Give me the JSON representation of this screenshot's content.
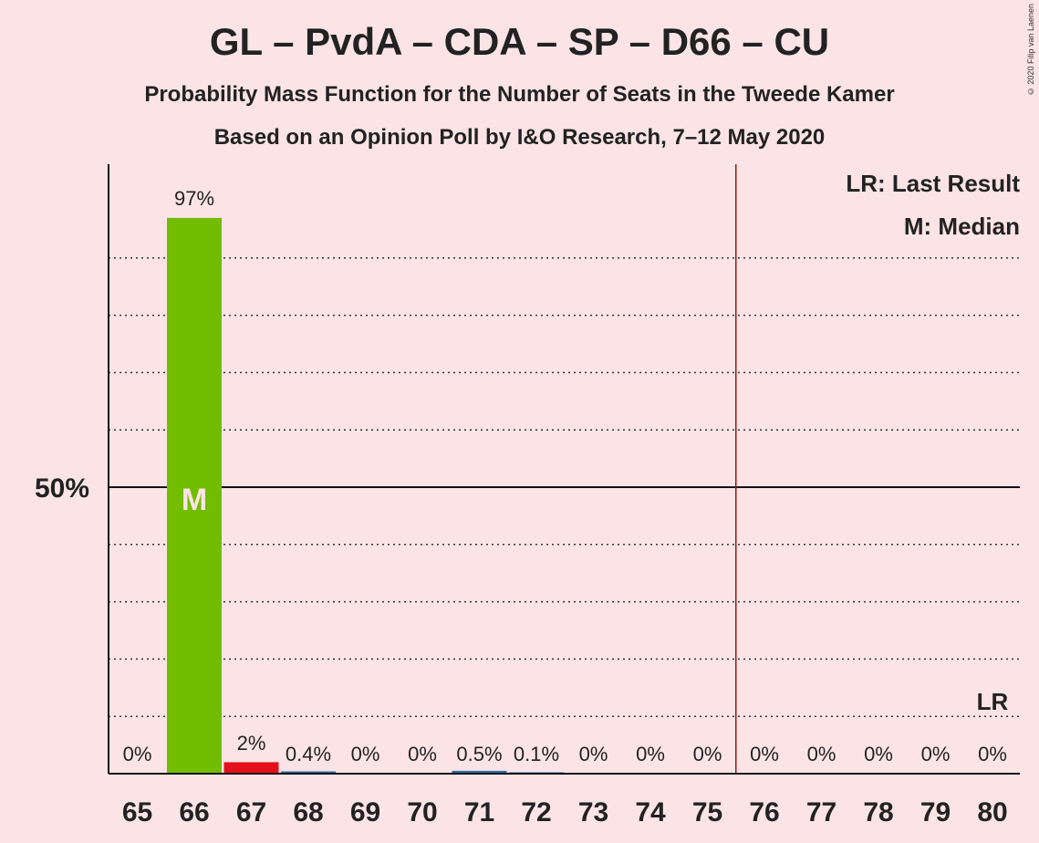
{
  "title": "GL – PvdA – CDA – SP – D66 – CU",
  "subtitle": "Probability Mass Function for the Number of Seats in the Tweede Kamer",
  "subtitle2": "Based on an Opinion Poll by I&O Research, 7–12 May 2020",
  "copyright": "© 2020 Filip van Laenen",
  "legend": {
    "lr": "LR: Last Result",
    "m": "M: Median"
  },
  "markers": {
    "median_label": "M",
    "last_result_label": "LR"
  },
  "colors": {
    "background": "#fce4e6",
    "median_bar": "#73bd00",
    "bar_67": "#e3101c",
    "bar_default": "#2e6da4",
    "majority_line": "#8b1a1a"
  },
  "chart_data": {
    "type": "bar",
    "categories": [
      "65",
      "66",
      "67",
      "68",
      "69",
      "70",
      "71",
      "72",
      "73",
      "74",
      "75",
      "76",
      "77",
      "78",
      "79",
      "80"
    ],
    "values": [
      0,
      97,
      2,
      0.4,
      0,
      0,
      0.5,
      0.1,
      0,
      0,
      0,
      0,
      0,
      0,
      0,
      0
    ],
    "labels": [
      "0%",
      "97%",
      "2%",
      "0.4%",
      "0%",
      "0%",
      "0.5%",
      "0.1%",
      "0%",
      "0%",
      "0%",
      "0%",
      "0%",
      "0%",
      "0%",
      "0%"
    ],
    "ylim": [
      0,
      100
    ],
    "ytick_label": "50%",
    "ytick_value": 50,
    "gridlines": [
      10,
      20,
      30,
      40,
      60,
      70,
      80,
      90
    ],
    "median": "66",
    "last_result": "80",
    "majority_after": "75"
  }
}
